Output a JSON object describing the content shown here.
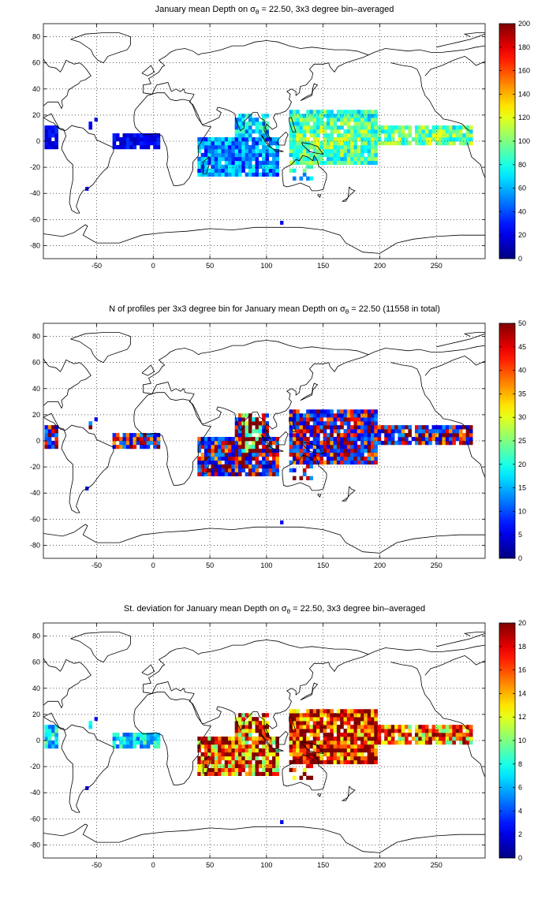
{
  "chart_data": [
    {
      "type": "heatmap",
      "title_pre": "January mean Depth on σ",
      "title_sub": "θ",
      "title_post": " = 22.50, 3x3 degree bin–averaged",
      "x_ticks": [
        "-50",
        "0",
        "50",
        "100",
        "150",
        "200",
        "250"
      ],
      "y_ticks": [
        "80",
        "60",
        "40",
        "20",
        "0",
        "-20",
        "-40",
        "-60",
        "-80"
      ],
      "xlim": [
        -97,
        293
      ],
      "ylim": [
        -90,
        90
      ],
      "colorbar": {
        "min": 0,
        "max": 200,
        "ticks": [
          "200",
          "180",
          "160",
          "140",
          "120",
          "100",
          "80",
          "60",
          "40",
          "20",
          "0"
        ]
      },
      "grid": true,
      "colormap": "jet"
    },
    {
      "type": "heatmap",
      "title_pre": "N of profiles per 3x3 degree bin for January mean Depth on σ",
      "title_sub": "θ",
      "title_post": " = 22.50 (11558 in total)",
      "x_ticks": [
        "-50",
        "0",
        "50",
        "100",
        "150",
        "200",
        "250"
      ],
      "y_ticks": [
        "80",
        "60",
        "40",
        "20",
        "0",
        "-20",
        "-40",
        "-60",
        "-80"
      ],
      "xlim": [
        -97,
        293
      ],
      "ylim": [
        -90,
        90
      ],
      "colorbar": {
        "min": 0,
        "max": 50,
        "ticks": [
          "50",
          "45",
          "40",
          "35",
          "30",
          "25",
          "20",
          "15",
          "10",
          "5",
          "0"
        ]
      },
      "grid": true,
      "colormap": "jet"
    },
    {
      "type": "heatmap",
      "title_pre": "St. deviation for January mean Depth on σ",
      "title_sub": "θ",
      "title_post": " = 22.50, 3x3 degree bin–averaged",
      "x_ticks": [
        "-50",
        "0",
        "50",
        "100",
        "150",
        "200",
        "250"
      ],
      "y_ticks": [
        "80",
        "60",
        "40",
        "20",
        "0",
        "-20",
        "-40",
        "-60",
        "-80"
      ],
      "xlim": [
        -97,
        293
      ],
      "ylim": [
        -90,
        90
      ],
      "colorbar": {
        "min": 0,
        "max": 20,
        "ticks": [
          "20",
          "18",
          "16",
          "14",
          "12",
          "10",
          "8",
          "6",
          "4",
          "2",
          "0"
        ]
      },
      "grid": true,
      "colormap": "jet"
    }
  ]
}
